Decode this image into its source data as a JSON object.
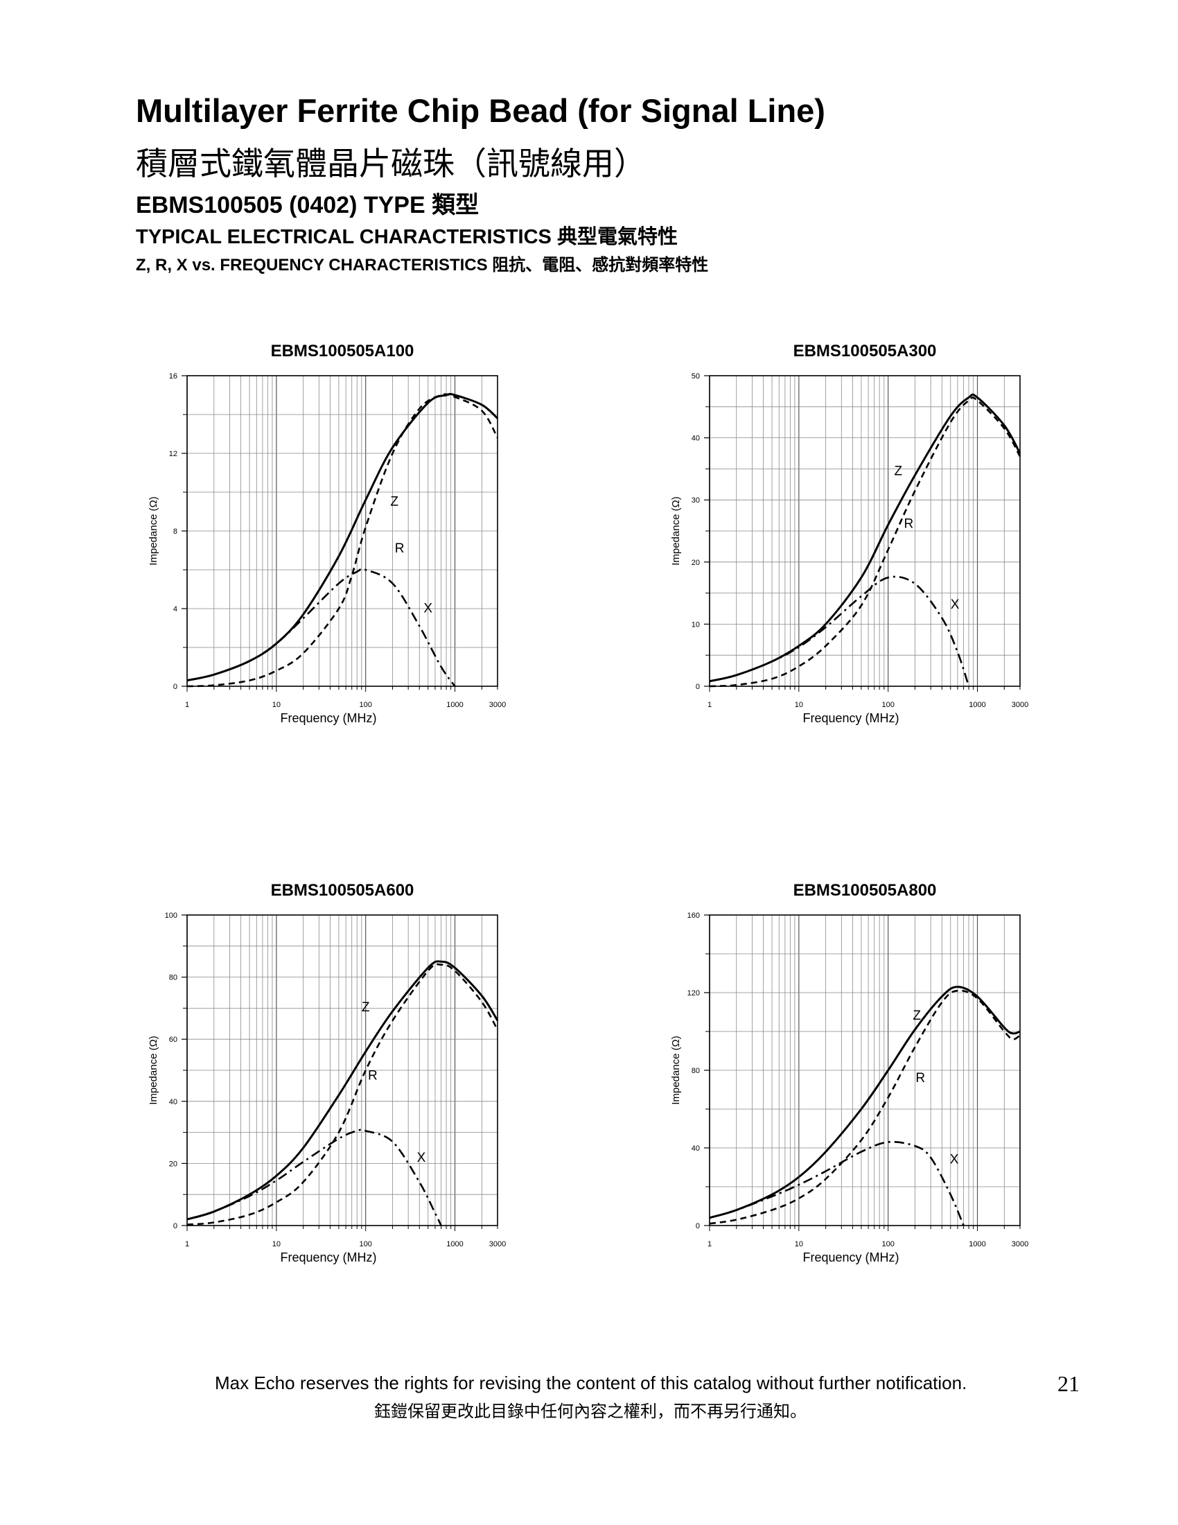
{
  "header": {
    "title": "Multilayer Ferrite Chip Bead (for Signal Line)",
    "title_cn": "積層式鐵氧體晶片磁珠（訊號線用）",
    "type_line": "EBMS100505 (0402) TYPE 類型",
    "typical": "TYPICAL ELECTRICAL CHARACTERISTICS 典型電氣特性",
    "zrx": "Z, R, X vs. FREQUENCY CHARACTERISTICS 阻抗、電阻、感抗對頻率特性"
  },
  "chart_data": [
    {
      "type": "line",
      "title": "EBMS100505A100",
      "xlabel": "Frequency (MHz)",
      "ylabel": "Impedance (Ω)",
      "x_scale": "log",
      "xlim": [
        1,
        3000
      ],
      "ylim": [
        0,
        16
      ],
      "y_ticks": [
        0,
        4,
        8,
        12,
        16
      ],
      "x_tick_labels": [
        [
          "1",
          1
        ],
        [
          "10",
          10
        ],
        [
          "100",
          100
        ],
        [
          "1000",
          1000
        ],
        [
          "3000",
          3000
        ]
      ],
      "series": [
        {
          "name": "Z",
          "style": "solid",
          "x": [
            1,
            2,
            5,
            10,
            20,
            50,
            100,
            200,
            500,
            800,
            1000,
            2000,
            3000
          ],
          "y": [
            0.3,
            0.6,
            1.3,
            2.2,
            3.7,
            6.7,
            9.6,
            12.3,
            14.6,
            15.0,
            15.0,
            14.5,
            13.8
          ]
        },
        {
          "name": "R",
          "style": "dashed",
          "x": [
            1,
            2,
            5,
            10,
            20,
            50,
            70,
            100,
            200,
            400,
            700,
            1000,
            2000,
            3000
          ],
          "y": [
            0.0,
            0.05,
            0.3,
            0.8,
            1.7,
            4.0,
            5.7,
            8.2,
            12.0,
            14.3,
            15.0,
            14.9,
            14.2,
            12.8
          ]
        },
        {
          "name": "X",
          "style": "dashdot",
          "x": [
            1,
            2,
            5,
            10,
            20,
            50,
            80,
            100,
            200,
            400,
            700,
            1000
          ],
          "y": [
            0.3,
            0.6,
            1.3,
            2.2,
            3.5,
            5.3,
            5.9,
            6.0,
            5.3,
            3.1,
            1.0,
            0.0
          ]
        }
      ],
      "annotations": [
        [
          "Z",
          210,
          9.3
        ],
        [
          "R",
          240,
          6.9
        ],
        [
          "X",
          500,
          3.8
        ]
      ]
    },
    {
      "type": "line",
      "title": "EBMS100505A300",
      "xlabel": "Frequency (MHz)",
      "ylabel": "Impedance (Ω)",
      "x_scale": "log",
      "xlim": [
        1,
        3000
      ],
      "ylim": [
        0,
        50
      ],
      "y_ticks": [
        0,
        10,
        20,
        30,
        40,
        50
      ],
      "x_tick_labels": [
        [
          "1",
          1
        ],
        [
          "10",
          10
        ],
        [
          "100",
          100
        ],
        [
          "1000",
          1000
        ],
        [
          "3000",
          3000
        ]
      ],
      "series": [
        {
          "name": "Z",
          "style": "solid",
          "x": [
            1,
            2,
            5,
            10,
            20,
            50,
            100,
            200,
            500,
            800,
            1000,
            2000,
            3000
          ],
          "y": [
            0.8,
            1.8,
            4.0,
            6.5,
            10.0,
            17.5,
            26.0,
            34.0,
            43.5,
            46.5,
            46.5,
            42.0,
            37.5
          ]
        },
        {
          "name": "R",
          "style": "dashed",
          "x": [
            1,
            2,
            5,
            10,
            20,
            50,
            100,
            200,
            500,
            800,
            1000,
            2000,
            3000
          ],
          "y": [
            0.0,
            0.2,
            1.2,
            3.2,
            6.5,
            13.0,
            22.0,
            31.5,
            42.5,
            46.0,
            46.0,
            41.5,
            37.0
          ]
        },
        {
          "name": "X",
          "style": "dashdot",
          "x": [
            1,
            2,
            5,
            10,
            20,
            50,
            100,
            200,
            400,
            600,
            800
          ],
          "y": [
            0.8,
            1.8,
            4.0,
            6.3,
            9.5,
            14.5,
            17.5,
            16.5,
            11.0,
            5.5,
            0.0
          ]
        }
      ],
      "annotations": [
        [
          "Z",
          130,
          34.0
        ],
        [
          "R",
          170,
          25.5
        ],
        [
          "X",
          560,
          12.5
        ]
      ]
    },
    {
      "type": "line",
      "title": "EBMS100505A600",
      "xlabel": "Frequency (MHz)",
      "ylabel": "Impedance (Ω)",
      "x_scale": "log",
      "xlim": [
        1,
        3000
      ],
      "ylim": [
        0,
        100
      ],
      "y_ticks": [
        0,
        20,
        40,
        60,
        80,
        100
      ],
      "x_tick_labels": [
        [
          "1",
          1
        ],
        [
          "10",
          10
        ],
        [
          "100",
          100
        ],
        [
          "1000",
          1000
        ],
        [
          "3000",
          3000
        ]
      ],
      "series": [
        {
          "name": "Z",
          "style": "solid",
          "x": [
            1,
            2,
            5,
            10,
            20,
            50,
            100,
            200,
            500,
            700,
            1000,
            2000,
            3000
          ],
          "y": [
            2.0,
            4.5,
            10.0,
            16.0,
            25.0,
            42.0,
            56.0,
            69.0,
            83.0,
            85.0,
            83.0,
            74.0,
            66.0
          ]
        },
        {
          "name": "R",
          "style": "dashed",
          "x": [
            1,
            2,
            5,
            10,
            20,
            50,
            100,
            200,
            500,
            700,
            1000,
            2000,
            3000
          ],
          "y": [
            0.3,
            1.0,
            3.5,
            7.5,
            14.0,
            30.0,
            50.0,
            66.0,
            82.0,
            84.0,
            82.0,
            72.0,
            63.0
          ]
        },
        {
          "name": "X",
          "style": "dashdot",
          "x": [
            1,
            2,
            5,
            10,
            20,
            50,
            80,
            100,
            200,
            400,
            600,
            700
          ],
          "y": [
            2.0,
            4.5,
            9.5,
            14.5,
            20.5,
            28.0,
            30.5,
            30.5,
            27.0,
            14.0,
            4.0,
            0.0
          ]
        }
      ],
      "annotations": [
        [
          "Z",
          100,
          69.0
        ],
        [
          "R",
          120,
          47.0
        ],
        [
          "X",
          420,
          20.5
        ]
      ]
    },
    {
      "type": "line",
      "title": "EBMS100505A800",
      "xlabel": "Frequency (MHz)",
      "ylabel": "Impedance (Ω)",
      "x_scale": "log",
      "xlim": [
        1,
        3000
      ],
      "ylim": [
        0,
        160
      ],
      "y_ticks": [
        0,
        40,
        80,
        120,
        160
      ],
      "x_tick_labels": [
        [
          "1",
          1
        ],
        [
          "10",
          10
        ],
        [
          "100",
          100
        ],
        [
          "1000",
          1000
        ],
        [
          "3000",
          3000
        ]
      ],
      "series": [
        {
          "name": "Z",
          "style": "solid",
          "x": [
            1,
            2,
            5,
            10,
            20,
            50,
            100,
            200,
            400,
            600,
            1000,
            2000,
            2500,
            3000
          ],
          "y": [
            4.0,
            8.0,
            16.0,
            25.0,
            38.0,
            60.0,
            80.0,
            101.0,
            118.0,
            123.0,
            118.0,
            102.0,
            99.0,
            100.0
          ]
        },
        {
          "name": "R",
          "style": "dashed",
          "x": [
            1,
            2,
            5,
            10,
            20,
            50,
            100,
            200,
            400,
            600,
            1000,
            2000,
            2500,
            3000
          ],
          "y": [
            1.0,
            3.0,
            8.0,
            14.0,
            24.0,
            44.0,
            66.0,
            92.0,
            115.0,
            121.0,
            117.0,
            100.0,
            96.0,
            98.0
          ]
        },
        {
          "name": "X",
          "style": "dashdot",
          "x": [
            1,
            2,
            5,
            10,
            20,
            50,
            100,
            200,
            300,
            500,
            700
          ],
          "y": [
            4.0,
            8.0,
            15.0,
            21.0,
            28.0,
            38.0,
            43.0,
            41.0,
            35.0,
            16.0,
            0.0
          ]
        }
      ],
      "annotations": [
        [
          "Z",
          210,
          106.0
        ],
        [
          "R",
          230,
          74.0
        ],
        [
          "X",
          550,
          32.0
        ]
      ]
    }
  ],
  "footer": {
    "text_en": "Max Echo reserves the rights for revising the content of this catalog without further notification.",
    "text_cn": "鈺鎧保留更改此目錄中任何內容之權利，而不再另行通知。",
    "page_number": "21"
  }
}
